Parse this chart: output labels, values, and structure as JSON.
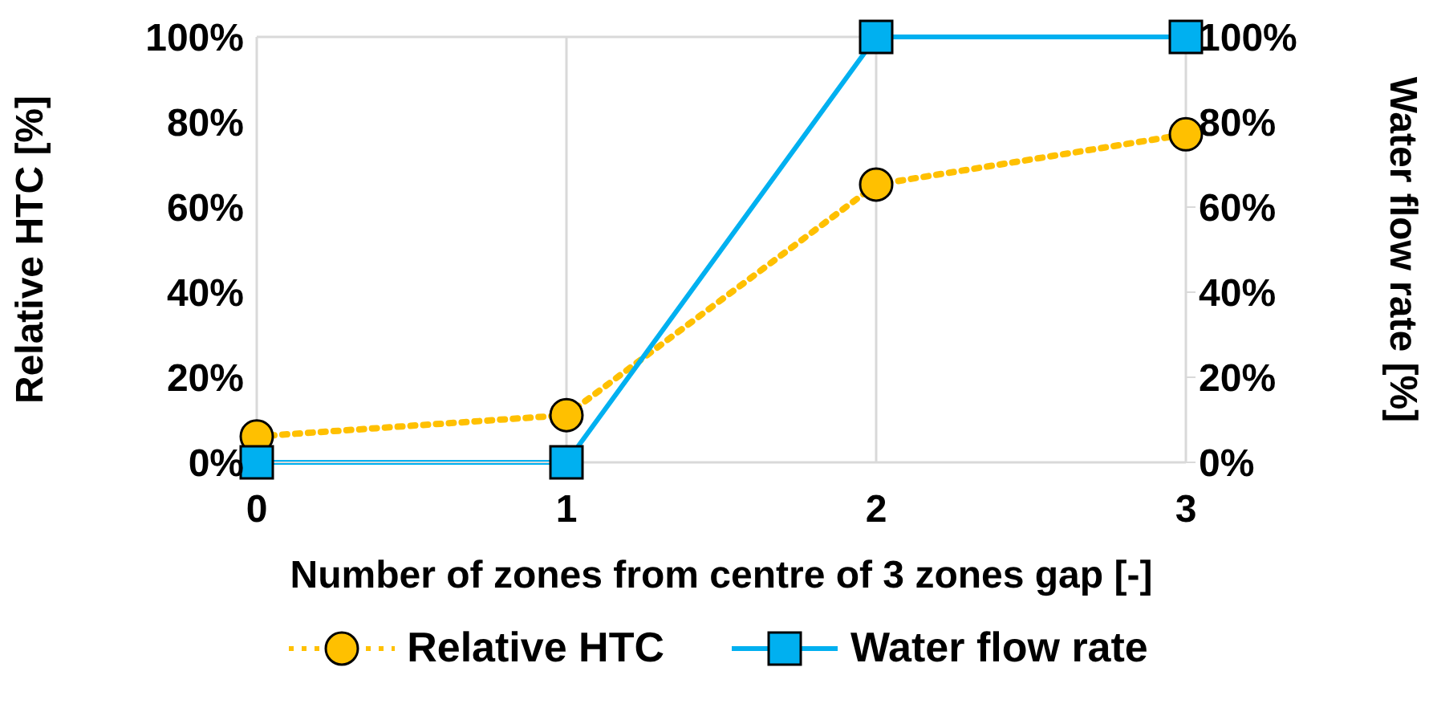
{
  "chart_data": {
    "type": "line",
    "xlabel": "Number of zones from centre of 3 zones gap [-]",
    "ylabel": "Relative HTC [%]",
    "y2label": "Water flow rate [%]",
    "x": [
      0,
      1,
      2,
      3
    ],
    "xlim": [
      0,
      3
    ],
    "xticks": [
      0,
      1,
      2,
      3
    ],
    "ylim": [
      0,
      100
    ],
    "yticks": [
      {
        "value": 0,
        "label": "0%"
      },
      {
        "value": 20,
        "label": "20%"
      },
      {
        "value": 40,
        "label": "40%"
      },
      {
        "value": 60,
        "label": "60%"
      },
      {
        "value": 80,
        "label": "80%"
      },
      {
        "value": 100,
        "label": "100%"
      }
    ],
    "y2lim": [
      0,
      100
    ],
    "y2ticks": [
      {
        "value": 0,
        "label": "0%"
      },
      {
        "value": 20,
        "label": "20%"
      },
      {
        "value": 40,
        "label": "40%"
      },
      {
        "value": 60,
        "label": "60%"
      },
      {
        "value": 80,
        "label": "80%"
      },
      {
        "value": 100,
        "label": "100%"
      }
    ],
    "grid": true,
    "legend": "bottom",
    "series": [
      {
        "name": "Relative HTC",
        "color": "#ffc000",
        "values": [
          6.1,
          11.1,
          65.3,
          77.1
        ],
        "marker": "circle",
        "line_style": "dotted"
      },
      {
        "name": "Water flow rate",
        "color": "#00b0f0",
        "values": [
          0,
          0,
          100,
          100
        ],
        "marker": "square",
        "line_style": "solid",
        "axis": "y2"
      }
    ]
  }
}
